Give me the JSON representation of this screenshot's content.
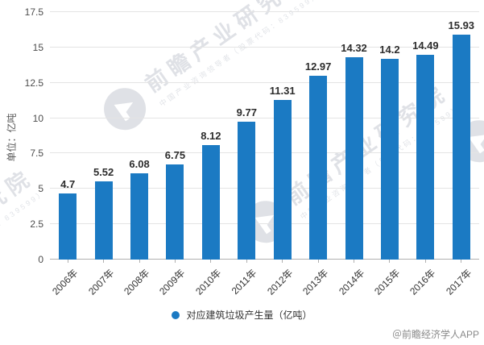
{
  "chart_data": {
    "type": "bar",
    "title": "",
    "categories": [
      "2006年",
      "2007年",
      "2008年",
      "2009年",
      "2010年",
      "2011年",
      "2012年",
      "2013年",
      "2014年",
      "2015年",
      "2016年",
      "2017年"
    ],
    "values": [
      4.7,
      5.52,
      6.08,
      6.75,
      8.12,
      9.77,
      11.31,
      12.97,
      14.32,
      14.2,
      14.49,
      15.93
    ],
    "value_labels": [
      "4.7",
      "5.52",
      "6.08",
      "6.75",
      "8.12",
      "9.77",
      "11.31",
      "12.97",
      "14.32",
      "14.2",
      "14.49",
      "15.93"
    ],
    "xlabel": "",
    "ylabel": "单位：亿吨",
    "ylim": [
      0,
      17.5
    ],
    "ytick_values": [
      0,
      2.5,
      5,
      7.5,
      10,
      12.5,
      15,
      17.5
    ],
    "ytick_labels": [
      "0",
      "2.5",
      "5",
      "7.5",
      "10",
      "12.5",
      "15",
      "17.5"
    ],
    "grid": true,
    "legend": {
      "label": "对应建筑垃圾产生量（亿吨）",
      "position": "bottom-center"
    }
  },
  "colors": {
    "bar": "#1b7ac3",
    "grid": "#e4e4e4",
    "axis": "#b0b0b0",
    "value_label": "#2d2d2d",
    "watermark": "#c6cad2"
  },
  "watermark": {
    "brand_large": "前瞻产业研究院",
    "brand_small": "中国产业咨询领导者（股票代码：839599）"
  },
  "footer": {
    "credit": "＠前瞻经济学人APP"
  }
}
